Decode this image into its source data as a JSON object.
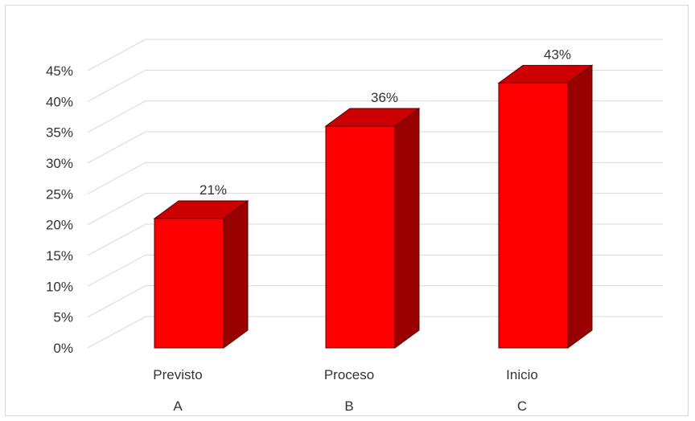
{
  "chart_data": {
    "type": "bar",
    "categories": [
      "Previsto",
      "Proceso",
      "Inicio"
    ],
    "category_codes": [
      "A",
      "B",
      "C"
    ],
    "values": [
      21,
      36,
      43
    ],
    "value_labels": [
      "21%",
      "36%",
      "43%"
    ],
    "ylim": [
      0,
      45
    ],
    "y_ticks": [
      0,
      5,
      10,
      15,
      20,
      25,
      30,
      35,
      40,
      45
    ],
    "y_tick_labels": [
      "0%",
      "5%",
      "10%",
      "15%",
      "20%",
      "25%",
      "30%",
      "35%",
      "40%",
      "45%"
    ],
    "title": "",
    "xlabel": "",
    "ylabel": "",
    "grid": true,
    "legend": "none",
    "three_d": true,
    "colors": {
      "bar_front": "#ff0000",
      "bar_top": "#cc0000",
      "bar_side": "#990000",
      "grid": "#d9d9d9"
    }
  }
}
